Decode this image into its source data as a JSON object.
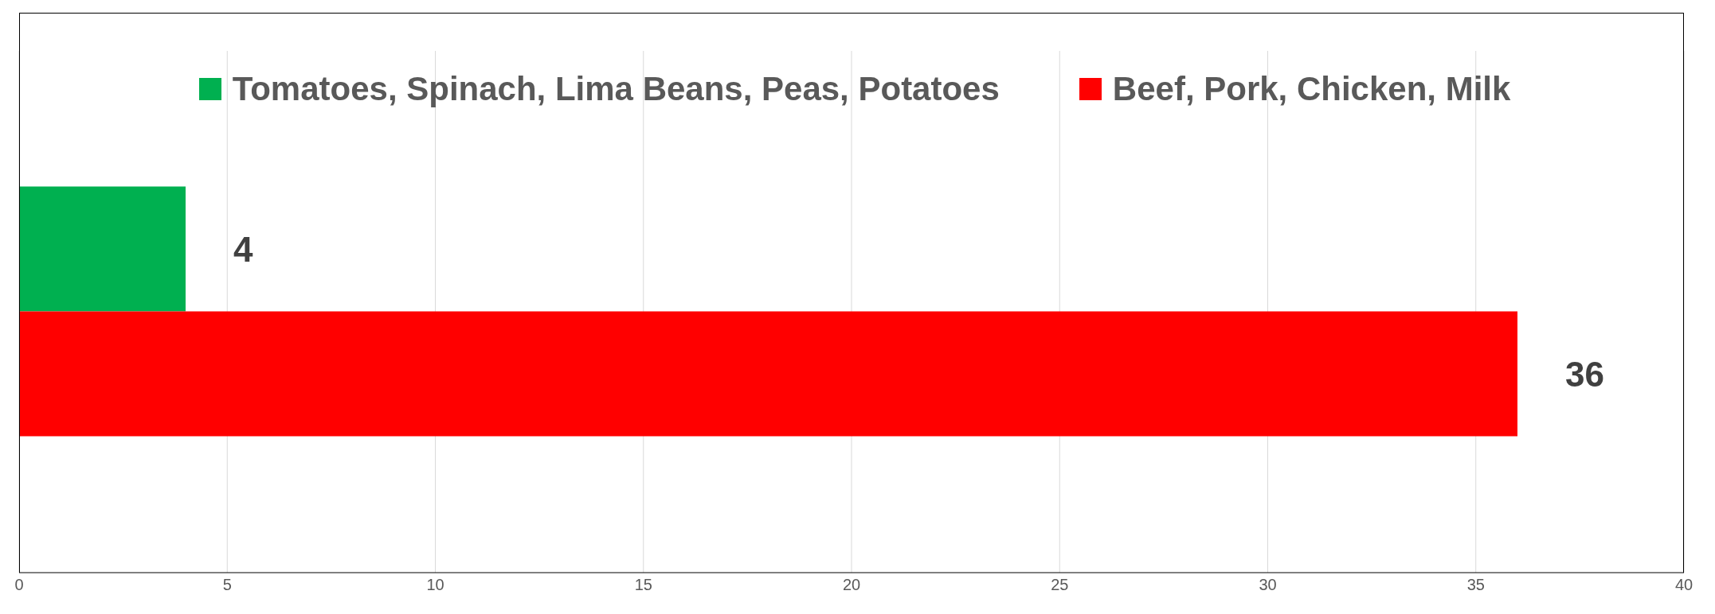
{
  "chart_data": {
    "type": "bar",
    "orientation": "horizontal",
    "categories": [
      null
    ],
    "series": [
      {
        "name": "Tomatoes, Spinach, Lima Beans, Peas, Potatoes",
        "color": "#00b050",
        "values": [
          4
        ]
      },
      {
        "name": "Beef, Pork, Chicken, Milk",
        "color": "#ff0000",
        "values": [
          36
        ]
      }
    ],
    "xlim": [
      0,
      40
    ],
    "xticks": [
      0,
      5,
      10,
      15,
      20,
      25,
      30,
      35,
      40
    ],
    "grid": "x",
    "legend": "top",
    "data_labels": true
  }
}
